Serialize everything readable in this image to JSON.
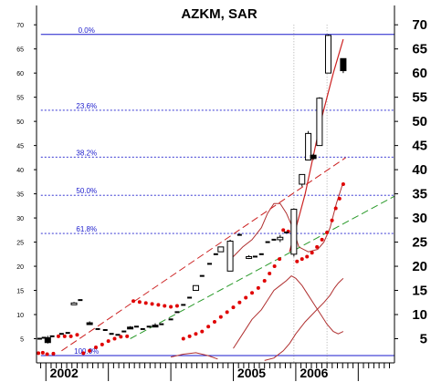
{
  "chart_data": {
    "type": "candlestick",
    "title": "AZKM, SAR",
    "xlabel": "",
    "ylabel": "",
    "ylim": [
      0,
      74
    ],
    "x_range": [
      2001.85,
      2007.58
    ],
    "x_ticks": [
      {
        "value": 2002.0,
        "label": "2002"
      },
      {
        "value": 2005.0,
        "label": "2005"
      },
      {
        "value": 2006.0,
        "label": "2006"
      }
    ],
    "y_ticks_left": [
      {
        "value": 5,
        "label": "5"
      },
      {
        "value": 10,
        "label": "10"
      },
      {
        "value": 15,
        "label": "15"
      },
      {
        "value": 20,
        "label": "20"
      },
      {
        "value": 25,
        "label": "25"
      },
      {
        "value": 30,
        "label": "30"
      },
      {
        "value": 35,
        "label": "35"
      },
      {
        "value": 40,
        "label": "40"
      },
      {
        "value": 45,
        "label": "45"
      },
      {
        "value": 50,
        "label": "50"
      },
      {
        "value": 55,
        "label": "55"
      },
      {
        "value": 60,
        "label": "60"
      },
      {
        "value": 65,
        "label": "65"
      },
      {
        "value": 70,
        "label": "70"
      }
    ],
    "y_ticks_right": [
      {
        "value": 5,
        "label": "5"
      },
      {
        "value": 10,
        "label": "10"
      },
      {
        "value": 15,
        "label": "15"
      },
      {
        "value": 20,
        "label": "20"
      },
      {
        "value": 25,
        "label": "25"
      },
      {
        "value": 30,
        "label": "30"
      },
      {
        "value": 35,
        "label": "35"
      },
      {
        "value": 40,
        "label": "40"
      },
      {
        "value": 45,
        "label": "45"
      },
      {
        "value": 50,
        "label": "50"
      },
      {
        "value": 55,
        "label": "55"
      },
      {
        "value": 60,
        "label": "60"
      },
      {
        "value": 65,
        "label": "65"
      },
      {
        "value": 70,
        "label": "70"
      }
    ],
    "fib_levels": [
      {
        "label": "0.0%",
        "value": 68.0
      },
      {
        "label": "23.6%",
        "value": 52.3
      },
      {
        "label": "38.2%",
        "value": 42.6
      },
      {
        "label": "50.0%",
        "value": 34.7
      },
      {
        "label": "61.8%",
        "value": 26.8
      },
      {
        "label": "100.0%",
        "value": 1.5
      }
    ],
    "candles": [
      {
        "x": 2002.03,
        "open": 5.2,
        "high": 5.6,
        "low": 4.0,
        "close": 4.2
      },
      {
        "x": 2002.45,
        "open": 12.2,
        "high": 12.6,
        "low": 12.0,
        "close": 12.4
      },
      {
        "x": 2002.7,
        "open": 8.3,
        "high": 8.6,
        "low": 8.0,
        "close": 8.0
      },
      {
        "x": 2003.35,
        "open": 7.4,
        "high": 7.6,
        "low": 7.0,
        "close": 7.3
      },
      {
        "x": 2003.75,
        "open": 7.8,
        "high": 8.2,
        "low": 7.5,
        "close": 7.6
      },
      {
        "x": 2004.4,
        "open": 15.0,
        "high": 16.0,
        "low": 15.0,
        "close": 16.0
      },
      {
        "x": 2004.8,
        "open": 23.0,
        "high": 24.0,
        "low": 23.0,
        "close": 24.0
      },
      {
        "x": 2004.95,
        "open": 19.0,
        "high": 25.5,
        "low": 19.0,
        "close": 25.2
      },
      {
        "x": 2005.25,
        "open": 21.8,
        "high": 22.3,
        "low": 21.5,
        "close": 22.0
      },
      {
        "x": 2005.75,
        "open": 25.5,
        "high": 26.5,
        "low": 25.0,
        "close": 26.0
      },
      {
        "x": 2005.97,
        "open": 22.5,
        "high": 32.0,
        "low": 22.0,
        "close": 31.8
      },
      {
        "x": 2006.1,
        "open": 37.0,
        "high": 39.0,
        "low": 36.5,
        "close": 39.0
      },
      {
        "x": 2006.2,
        "open": 42.0,
        "high": 48.0,
        "low": 42.0,
        "close": 47.5
      },
      {
        "x": 2006.28,
        "open": 43.0,
        "high": 43.3,
        "low": 42.0,
        "close": 42.3
      },
      {
        "x": 2006.38,
        "open": 45.0,
        "high": 55.0,
        "low": 45.0,
        "close": 54.8
      },
      {
        "x": 2006.52,
        "open": 60.0,
        "high": 68.0,
        "low": 60.0,
        "close": 67.8
      },
      {
        "x": 2006.76,
        "open": 63.0,
        "high": 63.0,
        "low": 60.0,
        "close": 60.5
      }
    ],
    "bars": [
      {
        "x": 2001.9,
        "value": 5.0
      },
      {
        "x": 2001.97,
        "value": 5.2
      },
      {
        "x": 2002.1,
        "value": 5.5
      },
      {
        "x": 2002.25,
        "value": 6.0
      },
      {
        "x": 2002.35,
        "value": 6.2
      },
      {
        "x": 2002.55,
        "value": 13.0
      },
      {
        "x": 2002.83,
        "value": 7.0
      },
      {
        "x": 2002.95,
        "value": 6.8
      },
      {
        "x": 2003.05,
        "value": 6.0
      },
      {
        "x": 2003.15,
        "value": 5.8
      },
      {
        "x": 2003.25,
        "value": 6.5
      },
      {
        "x": 2003.45,
        "value": 7.5
      },
      {
        "x": 2003.55,
        "value": 7.0
      },
      {
        "x": 2003.65,
        "value": 7.5
      },
      {
        "x": 2003.85,
        "value": 8.0
      },
      {
        "x": 2004.0,
        "value": 9.0
      },
      {
        "x": 2004.1,
        "value": 10.5
      },
      {
        "x": 2004.2,
        "value": 12.0
      },
      {
        "x": 2004.3,
        "value": 13.5
      },
      {
        "x": 2004.5,
        "value": 18.0
      },
      {
        "x": 2004.62,
        "value": 20.5
      },
      {
        "x": 2004.72,
        "value": 22.5
      },
      {
        "x": 2005.1,
        "value": 26.5
      },
      {
        "x": 2005.35,
        "value": 22.0
      },
      {
        "x": 2005.45,
        "value": 22.5
      },
      {
        "x": 2005.55,
        "value": 25.0
      },
      {
        "x": 2005.65,
        "value": 25.5
      },
      {
        "x": 2005.85,
        "value": 27.0
      }
    ],
    "series": [
      {
        "values_xy": [
          [
            2001.88,
            2.0
          ],
          [
            2001.95,
            2.1
          ],
          [
            2002.02,
            1.8
          ],
          [
            2002.12,
            1.9
          ],
          [
            2002.2,
            5.5
          ],
          [
            2002.3,
            5.5
          ],
          [
            2002.4,
            5.5
          ],
          [
            2002.5,
            5.8
          ],
          [
            2002.6,
            2.0
          ],
          [
            2002.7,
            2.5
          ],
          [
            2002.8,
            3.2
          ],
          [
            2002.9,
            3.8
          ],
          [
            2003.0,
            4.5
          ],
          [
            2003.1,
            5.0
          ],
          [
            2003.2,
            5.4
          ],
          [
            2003.3,
            5.5
          ],
          [
            2003.4,
            12.8
          ],
          [
            2003.5,
            12.6
          ],
          [
            2003.6,
            12.4
          ],
          [
            2003.7,
            12.2
          ],
          [
            2003.8,
            12.0
          ],
          [
            2003.9,
            11.8
          ],
          [
            2004.0,
            11.6
          ],
          [
            2004.1,
            11.8
          ],
          [
            2004.2,
            5.0
          ],
          [
            2004.3,
            5.5
          ],
          [
            2004.4,
            6.0
          ],
          [
            2004.5,
            6.5
          ],
          [
            2004.6,
            7.5
          ],
          [
            2004.7,
            8.5
          ],
          [
            2004.8,
            9.5
          ],
          [
            2004.9,
            10.5
          ],
          [
            2005.0,
            11.5
          ],
          [
            2005.1,
            12.5
          ],
          [
            2005.2,
            13.5
          ],
          [
            2005.3,
            14.5
          ],
          [
            2005.4,
            15.5
          ],
          [
            2005.5,
            17.0
          ],
          [
            2005.58,
            18.5
          ],
          [
            2005.66,
            20.0
          ],
          [
            2005.74,
            21.5
          ],
          [
            2005.8,
            27.5
          ],
          [
            2005.88,
            27.2
          ],
          [
            2005.95,
            27.0
          ],
          [
            2006.02,
            21.0
          ],
          [
            2006.1,
            21.5
          ],
          [
            2006.18,
            22.0
          ],
          [
            2006.26,
            22.8
          ],
          [
            2006.34,
            24.0
          ],
          [
            2006.42,
            25.5
          ],
          [
            2006.5,
            27.0
          ],
          [
            2006.58,
            29.5
          ],
          [
            2006.64,
            32.0
          ],
          [
            2006.7,
            34.0
          ],
          [
            2006.76,
            37.0
          ]
        ]
      }
    ],
    "envelope_upper": [
      [
        2005.0,
        22.0
      ],
      [
        2005.15,
        24.0
      ],
      [
        2005.3,
        25.5
      ],
      [
        2005.45,
        28.0
      ],
      [
        2005.55,
        31.0
      ],
      [
        2005.65,
        33.0
      ],
      [
        2005.75,
        33.0
      ],
      [
        2005.85,
        31.0
      ],
      [
        2005.95,
        28.0
      ],
      [
        2006.05,
        24.0
      ],
      [
        2006.2,
        23.0
      ],
      [
        2006.35,
        23.5
      ],
      [
        2006.45,
        25.0
      ],
      [
        2006.55,
        28.0
      ],
      [
        2006.65,
        33.0
      ],
      [
        2006.75,
        37.0
      ]
    ],
    "envelope_lower": [
      [
        2005.0,
        3.0
      ],
      [
        2005.15,
        6.0
      ],
      [
        2005.3,
        9.0
      ],
      [
        2005.45,
        11.0
      ],
      [
        2005.55,
        13.0
      ],
      [
        2005.65,
        15.0
      ],
      [
        2005.75,
        16.0
      ],
      [
        2005.85,
        17.0
      ],
      [
        2005.93,
        18.0
      ],
      [
        2006.0,
        17.5
      ],
      [
        2006.1,
        16.0
      ],
      [
        2006.2,
        14.0
      ],
      [
        2006.3,
        12.0
      ],
      [
        2006.4,
        10.0
      ],
      [
        2006.5,
        8.0
      ],
      [
        2006.6,
        6.5
      ],
      [
        2006.68,
        6.0
      ],
      [
        2006.76,
        6.5
      ]
    ],
    "envelope_bottom": [
      [
        2005.5,
        0.5
      ],
      [
        2005.65,
        1.0
      ],
      [
        2005.8,
        2.5
      ],
      [
        2005.9,
        4.0
      ],
      [
        2006.0,
        6.0
      ],
      [
        2006.15,
        8.5
      ],
      [
        2006.3,
        10.5
      ],
      [
        2006.45,
        12.5
      ],
      [
        2006.55,
        14.0
      ],
      [
        2006.62,
        15.5
      ],
      [
        2006.68,
        16.5
      ],
      [
        2006.72,
        17.0
      ],
      [
        2006.76,
        17.5
      ]
    ],
    "envelope_small_hump": [
      [
        2004.0,
        1.2
      ],
      [
        2004.2,
        1.8
      ],
      [
        2004.4,
        2.1
      ],
      [
        2004.6,
        1.5
      ],
      [
        2004.75,
        0.8
      ]
    ],
    "trend_line": [
      [
        2005.9,
        23.0
      ],
      [
        2006.15,
        35.0
      ],
      [
        2006.4,
        50.0
      ],
      [
        2006.6,
        60.0
      ],
      [
        2006.76,
        67.0
      ]
    ],
    "trend_channel_upper": [
      [
        2002.25,
        2.5
      ],
      [
        2006.8,
        42.5
      ]
    ],
    "trend_channel_lower": [
      [
        2003.35,
        5.0
      ],
      [
        2007.58,
        34.5
      ]
    ],
    "vertical_markers": [
      2005.97,
      2006.5
    ]
  },
  "colors": {
    "fib_line": "#1a1acc",
    "sar_dots": "#e00000",
    "trend_red": "#cc2222",
    "trend_green": "#2a9a2a",
    "envelope": "#b03030",
    "candle": "#000000"
  }
}
